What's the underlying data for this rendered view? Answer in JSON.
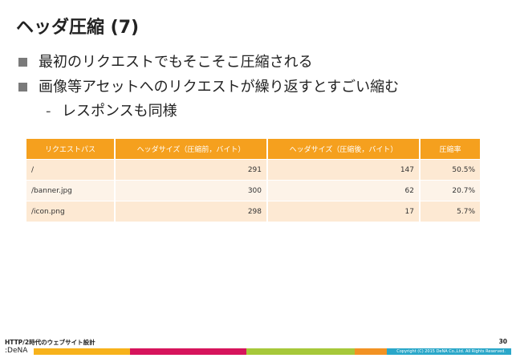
{
  "slide": {
    "title": "ヘッダ圧縮 (7)",
    "bullets": [
      "最初のリクエストでもそこそこ圧縮される",
      "画像等アセットへのリクエストが繰り返すとすごい縮む"
    ],
    "sub_bullet": "レスポンスも同様",
    "sub_bullet_marker": "-"
  },
  "table": {
    "headers": [
      "リクエストパス",
      "ヘッダサイズ（圧縮前，バイト）",
      "ヘッダサイズ（圧縮後，バイト）",
      "圧縮率"
    ],
    "rows": [
      [
        "/",
        "291",
        "147",
        "50.5%"
      ],
      [
        "/banner.jpg",
        "300",
        "62",
        "20.7%"
      ],
      [
        "/icon.png",
        "298",
        "17",
        "5.7%"
      ]
    ]
  },
  "footer": {
    "left_text": "HTTP/2時代のウェブサイト設計",
    "page_number": "30",
    "logo_text": ":DeNA",
    "copyright": "Copyright (C) 2015 DeNA Co.,Ltd. All Rights Reserved."
  },
  "colors": {
    "header_orange": "#f5a01e",
    "stripe": [
      "#f7b21b",
      "#d6145c",
      "#a6c83a",
      "#f29223",
      "#2aa7c9"
    ]
  }
}
